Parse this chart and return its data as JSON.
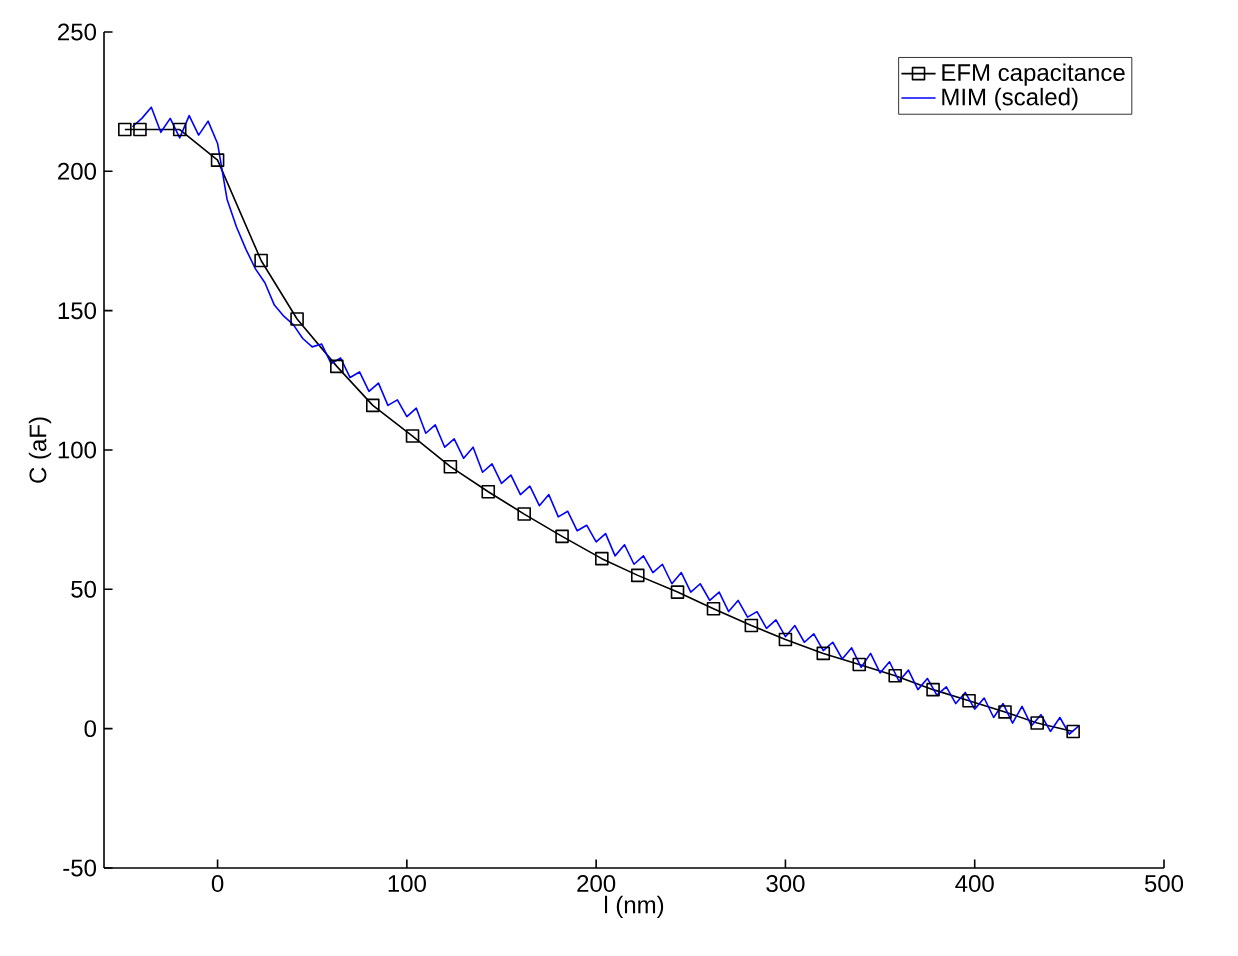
{
  "chart_data": {
    "type": "line",
    "xlabel": "l (nm)",
    "ylabel": "C (aF)",
    "xlim": [
      -60,
      500
    ],
    "ylim": [
      -50,
      250
    ],
    "xticks": [
      0,
      100,
      200,
      300,
      400,
      500
    ],
    "yticks": [
      -50,
      0,
      50,
      100,
      150,
      200,
      250
    ],
    "grid": false,
    "legend": "top right",
    "series": [
      {
        "name": "EFM capacitance",
        "color": "#000000",
        "marker": "square",
        "x": [
          -49,
          -41,
          -20,
          0,
          23,
          42,
          63,
          82,
          103,
          123,
          143,
          162,
          182,
          203,
          222,
          243,
          262,
          282,
          300,
          320,
          339,
          358,
          378,
          397,
          416,
          433,
          452
        ],
        "values": [
          215,
          215,
          215,
          204,
          168,
          147,
          130,
          116,
          105,
          94,
          85,
          77,
          69,
          61,
          55,
          49,
          43,
          37,
          32,
          27,
          23,
          19,
          14,
          10,
          6,
          2,
          -1
        ]
      },
      {
        "name": "MIM (scaled)",
        "color": "#0000ff",
        "marker": "none",
        "x": [
          -45,
          -40,
          -35,
          -30,
          -25,
          -20,
          -15,
          -10,
          -5,
          0,
          5,
          10,
          15,
          20,
          25,
          30,
          35,
          40,
          45,
          50,
          55,
          60,
          65,
          70,
          75,
          80,
          85,
          90,
          95,
          100,
          105,
          110,
          115,
          120,
          125,
          130,
          135,
          140,
          145,
          150,
          155,
          160,
          165,
          170,
          175,
          180,
          185,
          190,
          195,
          200,
          205,
          210,
          215,
          220,
          225,
          230,
          235,
          240,
          245,
          250,
          255,
          260,
          265,
          270,
          275,
          280,
          285,
          290,
          295,
          300,
          305,
          310,
          315,
          320,
          325,
          330,
          335,
          340,
          345,
          350,
          355,
          360,
          365,
          370,
          375,
          380,
          385,
          390,
          395,
          400,
          405,
          410,
          415,
          420,
          425,
          430,
          435,
          440,
          445,
          450,
          455
        ],
        "values": [
          216,
          219,
          223,
          214,
          219,
          212,
          220,
          213,
          218,
          210,
          190,
          180,
          172,
          165,
          160,
          152,
          148,
          145,
          140,
          137,
          138,
          131,
          133,
          126,
          128,
          121,
          124,
          116,
          118,
          112,
          115,
          106,
          109,
          101,
          104,
          97,
          101,
          92,
          95,
          88,
          91,
          84,
          87,
          80,
          84,
          76,
          78,
          71,
          73,
          67,
          70,
          62,
          66,
          59,
          62,
          56,
          59,
          52,
          56,
          49,
          52,
          46,
          49,
          42,
          46,
          40,
          42,
          36,
          39,
          33,
          37,
          31,
          34,
          28,
          31,
          25,
          29,
          22,
          27,
          20,
          24,
          17,
          21,
          14,
          18,
          12,
          15,
          9,
          13,
          7,
          11,
          4,
          9,
          2,
          8,
          1,
          5,
          -1,
          4,
          -2,
          1
        ]
      }
    ]
  }
}
